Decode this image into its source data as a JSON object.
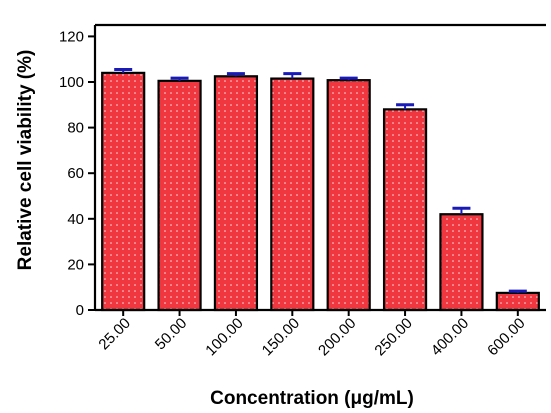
{
  "chart_data": {
    "type": "bar",
    "title": "",
    "xlabel": "Concentration (μg/mL)",
    "ylabel": "Relative cell viability (%)",
    "categories": [
      "25.00",
      "50.00",
      "100.00",
      "150.00",
      "200.00",
      "250.00",
      "400.00",
      "600.00"
    ],
    "values": [
      104,
      100.5,
      102.5,
      101.5,
      100.8,
      88,
      42,
      7.5
    ],
    "errors": [
      1.5,
      1.2,
      1.2,
      2.2,
      0.9,
      2.0,
      2.6,
      0.8
    ],
    "ylim": [
      0,
      125
    ],
    "yticks": [
      0,
      20,
      40,
      60,
      80,
      100,
      120
    ],
    "grid": false,
    "legend": "none",
    "colors": {
      "bar_fill": "#f0363f",
      "bar_edge": "#000000",
      "bar_dots": "#ffffff",
      "error_bar": "#1a1ab8",
      "axis": "#000000"
    }
  }
}
